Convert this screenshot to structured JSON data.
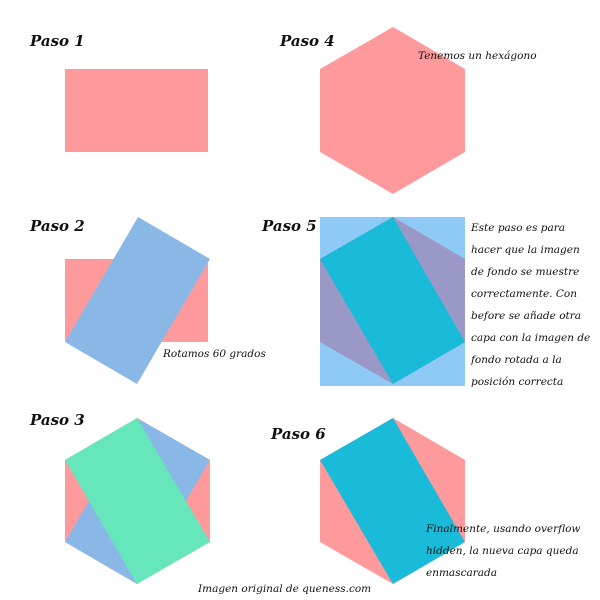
{
  "steps": [
    {
      "label": "Paso 1"
    },
    {
      "label": "Paso 2",
      "note": "Rotamos 60 grados"
    },
    {
      "label": "Paso 3"
    },
    {
      "label": "Paso 4",
      "note": "Tenemos un hexágono"
    },
    {
      "label": "Paso 5",
      "note": "Este paso es para hacer que la imagen de fondo se muestre correctamente. Con before se añade otra capa con la imagen de fondo rotada a la posición correcta"
    },
    {
      "label": "Paso 6",
      "note": "Finalmente, usando overflow hidden, la nueva capa queda enmascarada"
    }
  ],
  "footer": "Imagen original de queness.com",
  "colors": {
    "pink": "#ff9a9c",
    "blue": "#8ab8e6",
    "green": "#66e6bb",
    "teal": "#1abbd9",
    "sky": "#8fc9f5",
    "purple": "#9a98c6"
  }
}
